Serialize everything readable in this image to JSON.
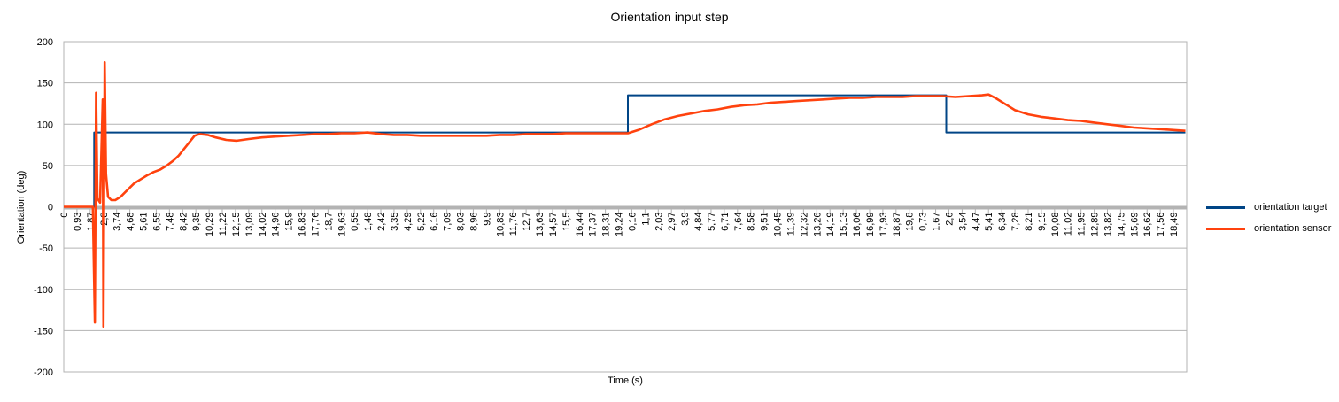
{
  "chart_data": {
    "type": "line",
    "title": "Orientation  input step",
    "xlabel": "Time (s)",
    "ylabel": "Orientation (deg)",
    "ylim": [
      -200,
      200
    ],
    "yticks": [
      200,
      150,
      100,
      50,
      0,
      -50,
      -100,
      -150,
      -200
    ],
    "grid": true,
    "legend_position": "right",
    "x_tick_labels": [
      "0",
      "0,93",
      "1,87",
      "2,8",
      "3,74",
      "4,68",
      "5,61",
      "6,55",
      "7,48",
      "8,42",
      "9,35",
      "10,29",
      "11,22",
      "12,15",
      "13,09",
      "14,02",
      "14,96",
      "15,9",
      "16,83",
      "17,76",
      "18,7",
      "19,63",
      "0,55",
      "1,48",
      "2,42",
      "3,35",
      "4,29",
      "5,22",
      "6,16",
      "7,09",
      "8,03",
      "8,96",
      "9,9",
      "10,83",
      "11,76",
      "12,7",
      "13,63",
      "14,57",
      "15,5",
      "16,44",
      "17,37",
      "18,31",
      "19,24",
      "0,16",
      "1,1",
      "2,03",
      "2,97",
      "3,9",
      "4,84",
      "5,77",
      "6,71",
      "7,64",
      "8,58",
      "9,51",
      "10,45",
      "11,39",
      "12,32",
      "13,26",
      "14,19",
      "15,13",
      "16,06",
      "16,99",
      "17,93",
      "18,87",
      "19,8",
      "0,73",
      "1,67",
      "2,6",
      "3,54",
      "4,47",
      "5,41",
      "6,34",
      "7,28",
      "8,21",
      "9,15",
      "10,08",
      "11,02",
      "11,95",
      "12,89",
      "13,82",
      "14,75",
      "15,69",
      "16,62",
      "17,56",
      "18,49"
    ],
    "series": [
      {
        "name": "orientation target",
        "color": "#004586",
        "points": [
          [
            0,
            0
          ],
          [
            2.3,
            0
          ],
          [
            2.3,
            90
          ],
          [
            42.7,
            90
          ],
          [
            42.7,
            135
          ],
          [
            66.8,
            135
          ],
          [
            66.8,
            90
          ],
          [
            84.9,
            90
          ]
        ]
      },
      {
        "name": "orientation sensor",
        "color": "#ff420e",
        "points": [
          [
            0,
            0
          ],
          [
            2.2,
            0
          ],
          [
            2.35,
            -140
          ],
          [
            2.45,
            138
          ],
          [
            2.55,
            10
          ],
          [
            2.75,
            5
          ],
          [
            2.95,
            130
          ],
          [
            3.0,
            -145
          ],
          [
            3.1,
            175
          ],
          [
            3.2,
            40
          ],
          [
            3.35,
            12
          ],
          [
            3.6,
            8
          ],
          [
            3.9,
            8
          ],
          [
            4.3,
            12
          ],
          [
            4.8,
            20
          ],
          [
            5.3,
            28
          ],
          [
            5.8,
            33
          ],
          [
            6.3,
            38
          ],
          [
            6.8,
            42
          ],
          [
            7.3,
            45
          ],
          [
            7.8,
            50
          ],
          [
            8.3,
            56
          ],
          [
            8.7,
            62
          ],
          [
            9.1,
            70
          ],
          [
            9.5,
            78
          ],
          [
            9.9,
            86
          ],
          [
            10.3,
            88
          ],
          [
            10.9,
            87
          ],
          [
            11.5,
            84
          ],
          [
            12.3,
            81
          ],
          [
            13.1,
            80
          ],
          [
            14,
            82
          ],
          [
            15,
            84
          ],
          [
            16,
            85
          ],
          [
            17,
            86
          ],
          [
            18,
            87
          ],
          [
            19,
            88
          ],
          [
            20,
            88
          ],
          [
            21,
            89
          ],
          [
            22,
            89
          ],
          [
            23,
            90
          ],
          [
            24,
            88
          ],
          [
            25,
            87
          ],
          [
            26,
            87
          ],
          [
            27,
            86
          ],
          [
            28,
            86
          ],
          [
            29,
            86
          ],
          [
            30,
            86
          ],
          [
            31,
            86
          ],
          [
            32,
            86
          ],
          [
            33,
            87
          ],
          [
            34,
            87
          ],
          [
            35,
            88
          ],
          [
            36,
            88
          ],
          [
            37,
            88
          ],
          [
            38,
            89
          ],
          [
            39,
            89
          ],
          [
            40,
            89
          ],
          [
            41,
            89
          ],
          [
            42,
            89
          ],
          [
            42.7,
            89
          ],
          [
            43.5,
            93
          ],
          [
            44.5,
            100
          ],
          [
            45.5,
            106
          ],
          [
            46.5,
            110
          ],
          [
            47.5,
            113
          ],
          [
            48.5,
            116
          ],
          [
            49.5,
            118
          ],
          [
            50.5,
            121
          ],
          [
            51.5,
            123
          ],
          [
            52.5,
            124
          ],
          [
            53.5,
            126
          ],
          [
            54.5,
            127
          ],
          [
            55.5,
            128
          ],
          [
            56.5,
            129
          ],
          [
            57.5,
            130
          ],
          [
            58.5,
            131
          ],
          [
            59.5,
            132
          ],
          [
            60.5,
            132
          ],
          [
            61.5,
            133
          ],
          [
            62.5,
            133
          ],
          [
            63.5,
            133
          ],
          [
            64.5,
            134
          ],
          [
            65.5,
            134
          ],
          [
            66.5,
            134
          ],
          [
            67.5,
            133
          ],
          [
            68.5,
            134
          ],
          [
            69.5,
            135
          ],
          [
            70.0,
            136
          ],
          [
            70.5,
            132
          ],
          [
            71.0,
            127
          ],
          [
            71.5,
            122
          ],
          [
            72,
            117
          ],
          [
            73,
            112
          ],
          [
            74,
            109
          ],
          [
            75,
            107
          ],
          [
            76,
            105
          ],
          [
            77,
            104
          ],
          [
            78,
            102
          ],
          [
            79,
            100
          ],
          [
            80,
            98
          ],
          [
            81,
            96
          ],
          [
            82,
            95
          ],
          [
            83,
            94
          ],
          [
            84,
            93
          ],
          [
            84.9,
            92
          ]
        ]
      }
    ]
  }
}
